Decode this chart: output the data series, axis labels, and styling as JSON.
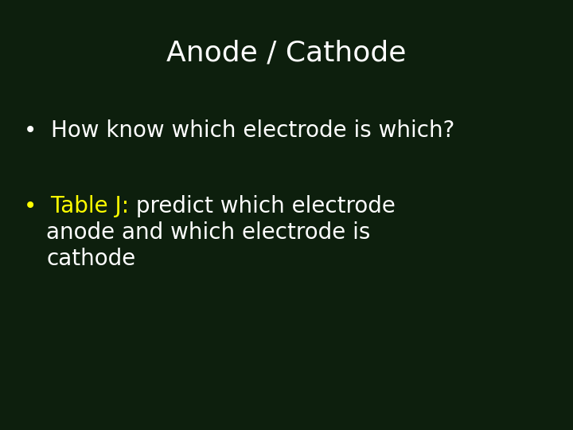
{
  "background_color": "#0d1f0d",
  "title": "Anode / Cathode",
  "title_color": "#ffffff",
  "title_fontsize": 26,
  "bullet1_text": "How know which electrode is which?",
  "bullet1_color": "#ffffff",
  "bullet1_fontsize": 20,
  "bullet2_highlight": "Table J:",
  "bullet2_highlight_color": "#ffff00",
  "bullet2_rest_line1": " predict which electrode",
  "bullet2_rest_line2": "anode and which electrode is",
  "bullet2_rest_line3": "cathode",
  "bullet2_color": "#ffffff",
  "bullet2_fontsize": 20,
  "font_family": "DejaVu Sans",
  "bullet_symbol": "•"
}
